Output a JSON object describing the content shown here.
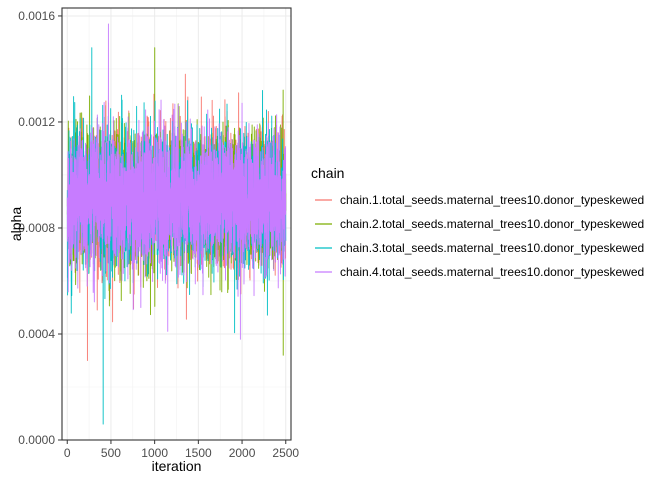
{
  "chart_data": {
    "type": "line",
    "title": "",
    "xlabel": "iteration",
    "ylabel": "alpha",
    "xlim": [
      -60,
      2560
    ],
    "ylim": [
      0,
      0.00163
    ],
    "x_ticks": [
      0,
      500,
      1000,
      1500,
      2000,
      2500
    ],
    "x_tick_labels": [
      "0",
      "500",
      "1000",
      "1500",
      "2000",
      "2500"
    ],
    "y_ticks": [
      0,
      0.0004,
      0.0008,
      0.0012,
      0.0016
    ],
    "y_tick_labels": [
      "0.0000",
      "0.0004",
      "0.0008",
      "0.0012",
      "0.0016"
    ],
    "grid": true,
    "legend": {
      "title": "chain",
      "position": "right"
    },
    "iterations": 2500,
    "series_summary": "trace of 2500 MCMC iterations per chain, fluctuating around 0.00091",
    "series": [
      {
        "name": "chain.1.total_seeds.maternal_trees10.donor_typeskewed",
        "color": "#F8766D",
        "mean": 0.00091,
        "min": 0.0003,
        "max": 0.00138,
        "min_at": 230,
        "max_at": 1350
      },
      {
        "name": "chain.2.total_seeds.maternal_trees10.donor_typeskewed",
        "color": "#7CAE00",
        "mean": 0.00091,
        "min": 0.00032,
        "max": 0.00148,
        "min_at": 2470,
        "max_at": 1000
      },
      {
        "name": "chain.3.total_seeds.maternal_trees10.donor_typeskewed",
        "color": "#00BFC4",
        "mean": 0.00091,
        "min": 6e-05,
        "max": 0.00148,
        "min_at": 410,
        "max_at": 280
      },
      {
        "name": "chain.4.total_seeds.maternal_trees10.donor_typeskewed",
        "color": "#C77CFF",
        "mean": 0.00091,
        "min": 0.00038,
        "max": 0.00157,
        "min_at": 1980,
        "max_at": 470
      }
    ]
  }
}
